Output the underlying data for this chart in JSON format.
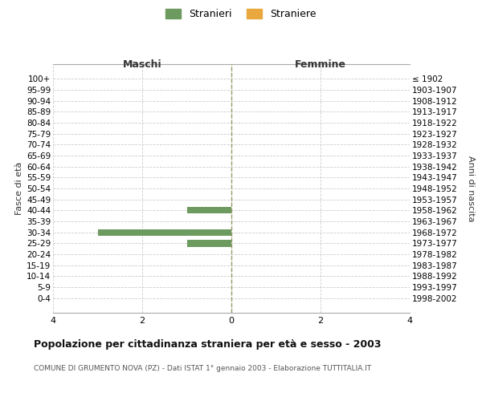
{
  "age_groups": [
    "100+",
    "95-99",
    "90-94",
    "85-89",
    "80-84",
    "75-79",
    "70-74",
    "65-69",
    "60-64",
    "55-59",
    "50-54",
    "45-49",
    "40-44",
    "35-39",
    "30-34",
    "25-29",
    "20-24",
    "15-19",
    "10-14",
    "5-9",
    "0-4"
  ],
  "birth_years": [
    "≤ 1902",
    "1903-1907",
    "1908-1912",
    "1913-1917",
    "1918-1922",
    "1923-1927",
    "1928-1932",
    "1933-1937",
    "1938-1942",
    "1943-1947",
    "1948-1952",
    "1953-1957",
    "1958-1962",
    "1963-1967",
    "1968-1972",
    "1973-1977",
    "1978-1982",
    "1983-1987",
    "1988-1992",
    "1993-1997",
    "1998-2002"
  ],
  "males": [
    0,
    0,
    0,
    0,
    0,
    0,
    0,
    0,
    0,
    0,
    0,
    0,
    1,
    0,
    3,
    1,
    0,
    0,
    0,
    0,
    0
  ],
  "females": [
    0,
    0,
    0,
    0,
    0,
    0,
    0,
    0,
    0,
    0,
    0,
    0,
    0,
    0,
    0,
    0,
    0,
    0,
    0,
    0,
    0
  ],
  "male_color": "#6d9a5e",
  "female_color": "#e8a83e",
  "male_label": "Stranieri",
  "female_label": "Straniere",
  "xlim": 4,
  "xlabel_left": "Maschi",
  "xlabel_right": "Femmine",
  "ylabel_left": "Fasce di età",
  "ylabel_right": "Anni di nascita",
  "title": "Popolazione per cittadinanza straniera per età e sesso - 2003",
  "subtitle": "COMUNE DI GRUMENTO NOVA (PZ) - Dati ISTAT 1° gennaio 2003 - Elaborazione TUTTITALIA.IT",
  "bg_color": "#ffffff",
  "grid_color": "#cccccc",
  "center_line_color": "#999966"
}
